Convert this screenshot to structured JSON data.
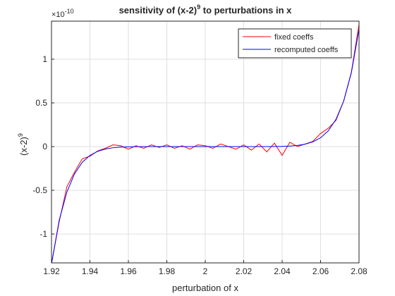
{
  "chart_data": {
    "type": "line",
    "title_parts": [
      "sensitivity of (x-2)",
      "9",
      " to perturbations in x"
    ],
    "x_label": "perturbation of x",
    "y_label_parts": [
      "(x-2)",
      "9"
    ],
    "y_exponent": [
      "×10",
      "-10"
    ],
    "x": [
      1.92,
      1.924,
      1.928,
      1.932,
      1.936,
      1.94,
      1.944,
      1.948,
      1.952,
      1.956,
      1.96,
      1.964,
      1.968,
      1.972,
      1.976,
      1.98,
      1.984,
      1.988,
      1.992,
      1.996,
      2,
      2.004,
      2.008,
      2.012,
      2.016,
      2.02,
      2.024,
      2.028,
      2.032,
      2.036,
      2.04,
      2.044,
      2.048,
      2.052,
      2.056,
      2.06,
      2.064,
      2.068,
      2.072,
      2.076,
      2.08
    ],
    "series": [
      {
        "name": "fixed coeffs",
        "color": "#ff0000",
        "values": [
          -1.34,
          -0.86,
          -0.46,
          -0.29,
          -0.14,
          -0.11,
          -0.05,
          -0.02,
          0.02,
          0.01,
          -0.03,
          0.01,
          -0.02,
          0.02,
          -0.01,
          0.02,
          -0.02,
          0.01,
          -0.03,
          0.02,
          0.01,
          -0.02,
          0.03,
          0,
          -0.03,
          0.02,
          -0.04,
          0.03,
          -0.06,
          0.04,
          -0.1,
          0.05,
          0,
          0.03,
          0.06,
          0.15,
          0.21,
          0.3,
          0.52,
          0.85,
          1.4
        ]
      },
      {
        "name": "recomputed coeffs",
        "color": "#0000ff",
        "values": [
          -1.342,
          -0.843,
          -0.52,
          -0.311,
          -0.18,
          -0.101,
          -0.054,
          -0.028,
          -0.0135,
          -0.0061,
          -0.0026,
          -0.001,
          -0.0004,
          -0.0001,
          0,
          0,
          0,
          0,
          0,
          0,
          0,
          0,
          0,
          0,
          0,
          0,
          0,
          0.0001,
          0.0004,
          0.001,
          0.0026,
          0.0061,
          0.0135,
          0.028,
          0.054,
          0.101,
          0.18,
          0.311,
          0.52,
          0.843,
          1.342
        ]
      }
    ],
    "xlim": [
      1.92,
      2.08
    ],
    "xticks": [
      1.92,
      1.94,
      1.96,
      1.98,
      2,
      2.02,
      2.04,
      2.06,
      2.08
    ],
    "ylim": [
      -1.33,
      1.435
    ],
    "yticks": [
      -1,
      -0.5,
      0,
      0.5,
      1
    ],
    "grid": true,
    "legend": "northeast"
  }
}
